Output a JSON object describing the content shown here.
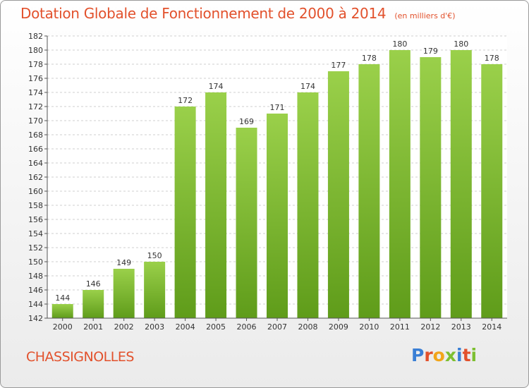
{
  "header": {
    "title": "Dotation Globale de Fonctionnement de 2000 à 2014",
    "unit": "(en milliers d'€)"
  },
  "footer": {
    "commune": "CHASSIGNOLLES",
    "logo": "Proxiti"
  },
  "colors": {
    "bar": "#7dbf31",
    "bar_light": "#9ad04a",
    "bar_dark": "#5f9c1a",
    "title": "#e2512c"
  },
  "chart_data": {
    "type": "bar",
    "title": "Dotation Globale de Fonctionnement de 2000 à 2014",
    "subtitle": "(en milliers d'€)",
    "categories": [
      "2000",
      "2001",
      "2002",
      "2003",
      "2004",
      "2005",
      "2006",
      "2007",
      "2008",
      "2009",
      "2010",
      "2011",
      "2012",
      "2013",
      "2014"
    ],
    "values": [
      144,
      146,
      149,
      150,
      172,
      174,
      169,
      171,
      174,
      177,
      178,
      180,
      179,
      180,
      178
    ],
    "xlabel": "",
    "ylabel": "",
    "ylim": [
      142,
      182
    ],
    "yticks": [
      142,
      144,
      146,
      148,
      150,
      152,
      154,
      156,
      158,
      160,
      162,
      164,
      166,
      168,
      170,
      172,
      174,
      176,
      178,
      180,
      182
    ],
    "grid": true,
    "legend": "none"
  }
}
